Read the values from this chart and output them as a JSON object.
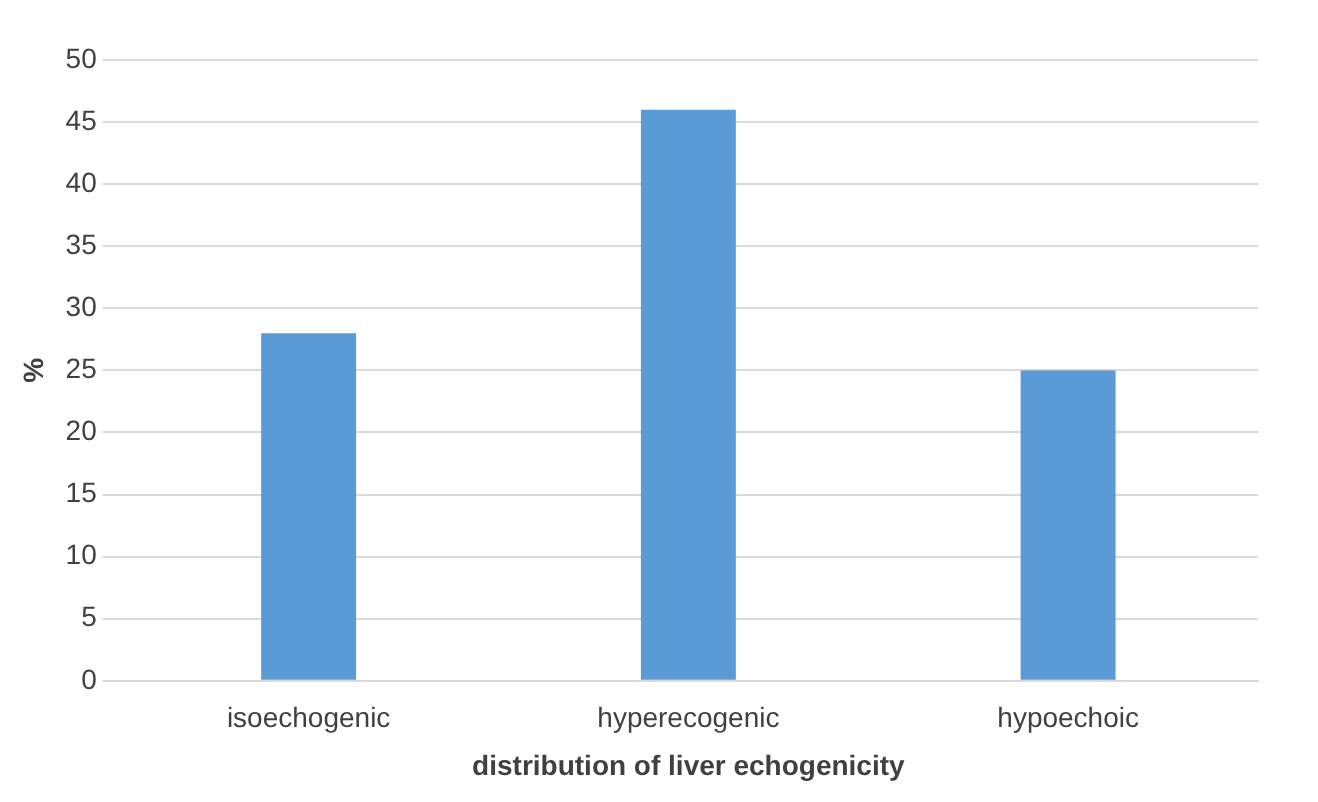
{
  "chart_data": {
    "type": "bar",
    "xlabel": "distribution of liver echogenicity",
    "ylabel": "%",
    "categories": [
      "isoechogenic",
      "hyperecogenic",
      "hypoechoic"
    ],
    "values": [
      28,
      46,
      25
    ],
    "color": "#5b9bd5",
    "ylim": [
      0,
      50
    ],
    "yticks": [
      0,
      5,
      10,
      15,
      20,
      25,
      30,
      35,
      40,
      45,
      50
    ],
    "grid": "y"
  }
}
